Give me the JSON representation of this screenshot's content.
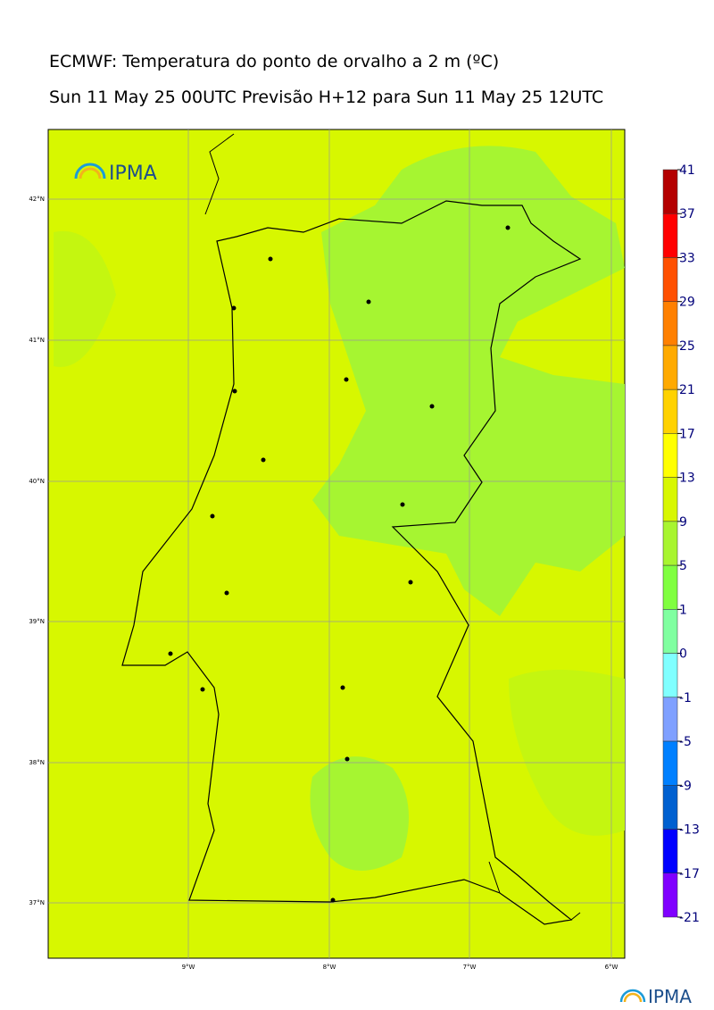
{
  "header": {
    "title": "ECMWF: Temperatura do ponto de orvalho a 2 m (ºC)",
    "subtitle": "Sun 11 May 25 00UTC Previsão H+12 para Sun 11 May 25 12UTC"
  },
  "logo": "IPMA",
  "map": {
    "lat_labels": [
      "42°N",
      "41°N",
      "40°N",
      "39°N",
      "38°N",
      "37°N"
    ],
    "lon_labels": [
      "9°W",
      "8°W",
      "7°W",
      "6°W"
    ]
  },
  "colorbar": {
    "levels": [
      41,
      37,
      33,
      29,
      25,
      21,
      17,
      13,
      9,
      5,
      1,
      0,
      -1,
      -5,
      -9,
      -13,
      -17,
      -21
    ],
    "colors": [
      "#b40000",
      "#ff0000",
      "#ff5000",
      "#ff8000",
      "#ffaa00",
      "#ffd200",
      "#ffff00",
      "#d8f700",
      "#a8f530",
      "#80ff40",
      "#80ffa0",
      "#80ffff",
      "#7fa0ff",
      "#0080ff",
      "#0060d0",
      "#0000ff",
      "#8000ff"
    ]
  },
  "footer_logo": "IPMA"
}
